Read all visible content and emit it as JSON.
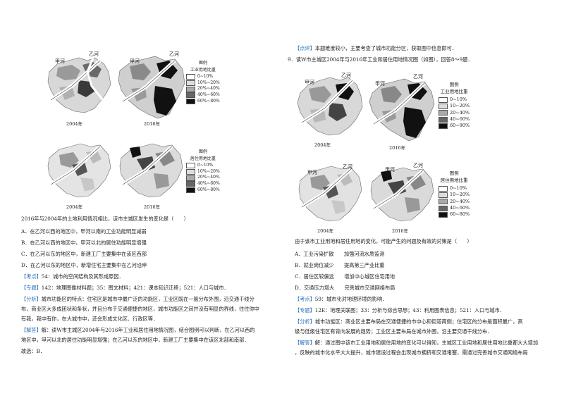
{
  "left": {
    "maps": {
      "river_a": "甲河",
      "river_b": "乙河",
      "year_2004": "2004年",
      "year_2016": "2016年",
      "legend_industry": {
        "title1": "图例",
        "title2": "工业用地比重",
        "items": [
          "0~10%",
          "10%~20%",
          "20%~40%",
          "40%~60%",
          "60%~80%"
        ]
      },
      "legend_residential": {
        "title1": "图例",
        "title2": "居住用地比重",
        "items": [
          "0~10%",
          "10%~20%",
          "20%~40%",
          "40%~60%",
          "60%~80%"
        ]
      }
    },
    "question": "2016年与2004年的土地利用情况相比，该市主城区发生的变化是（　　）",
    "options": [
      "A．在乙河以西的地区中，甲河以南的工业功能明显减弱",
      "B．在乙河以西的地区中，甲河以北的居住功能明显增强",
      "C．在乙河以东的地区中，新建工厂主要集中在该区西部",
      "D．在乙河以东的地区中，新增住宅主要集中在乙河沿岸"
    ],
    "kaodian_tag": "【考点】",
    "kaodian": "54：城市的空间结构及其形成原因．",
    "zhuanti_tag": "【专题】",
    "zhuanti": "142：地理图像材料题；35：图文材料；421：课本知识迁移；521：人口与城市．",
    "fenxi_tag": "【分析】",
    "fenxi": [
      "城市功能区的特点：住宅区是城市中最广泛的功能区，工业区既在一般分布外围，沿交通干线分",
      "布，商业区大多成团状和条状，并且分布于交通便捷的地区，城市功能区之间并没有明显的界线，往往你中",
      "有我，我中有你，在大城市中，还会形成文化区、行政区等．"
    ],
    "jieda_tag": "【解答】",
    "jieda": [
      "解：读W市主城区2004年与2016年工业和居住用地情况图，结合图例可以判断，在乙河以西的",
      "地区中，甲河以北的居住功能明显增强；在乙河以东的地区中，新建工厂主要集中在该区北部和南部．"
    ],
    "answer": "故选：B．"
  },
  "right": {
    "dianping_tag": "【点评】",
    "dianping": "本题难度较小，主要考查了城市功能分区，获取图中信息即可．",
    "q9_intro": "9．读W市主城区2004年与2016年工业和居住用地情况图（如图），回答8～9题．",
    "maps": {
      "river_a": "甲河",
      "river_b": "乙河",
      "year_2004": "2004年",
      "year_2016": "2016年",
      "legend_industry": {
        "title1": "图例",
        "title2": "工业用地比重",
        "items": [
          "0~10%",
          "10~20%",
          "20~40%",
          "40~60%",
          "60~80%"
        ]
      },
      "legend_residential": {
        "title1": "图例",
        "title2": "居住用地比重",
        "items": [
          "0~10%",
          "10~20%",
          "20~40%",
          "40~60%",
          "60~80%"
        ]
      }
    },
    "question": "由于该市工业用地和居住用地的变化，可能产生的问题及有效的对策是（　　）",
    "options": [
      "A．工业污染扩散　　加强河流水质监测",
      "B．就业岗位减少　　提高第三产业比重",
      "C．居住区较偏远　　增加中心城区住宅用地",
      "D．交通压力增大　　完善城市交通网络布局"
    ],
    "kaodian_tag": "【考点】",
    "kaodian": "59：城市化对地理环境的影响．",
    "zhuanti_tag": "【专题】",
    "zhuanti": "12E：地理关联图；33：分析与综合思想；43：利用图表信息；521：人口与城市．",
    "fenxi_tag": "【分析】",
    "fenxi": [
      "城市功能区：商业区主要布局在交通便捷的市中心和街道两侧；住宅区的分布是面积最广，高",
      "级与低级住宅区有背向发展的趋势；工业区主要布局在城市外围，沿主要交通干线分布．"
    ],
    "jieda_tag": "【解答】",
    "jieda": [
      "解：通过图中该市工业用地和居住用地的变化可以得知，主城区工业用地和居住用地比重都大大增加",
      "，反映的城市化水平大大提升，城市建设过程会出现城市拥挤和交通堵塞，需通过完善城市交通网络布局"
    ]
  },
  "colors": {
    "tag_blue": "#2a6db5"
  }
}
